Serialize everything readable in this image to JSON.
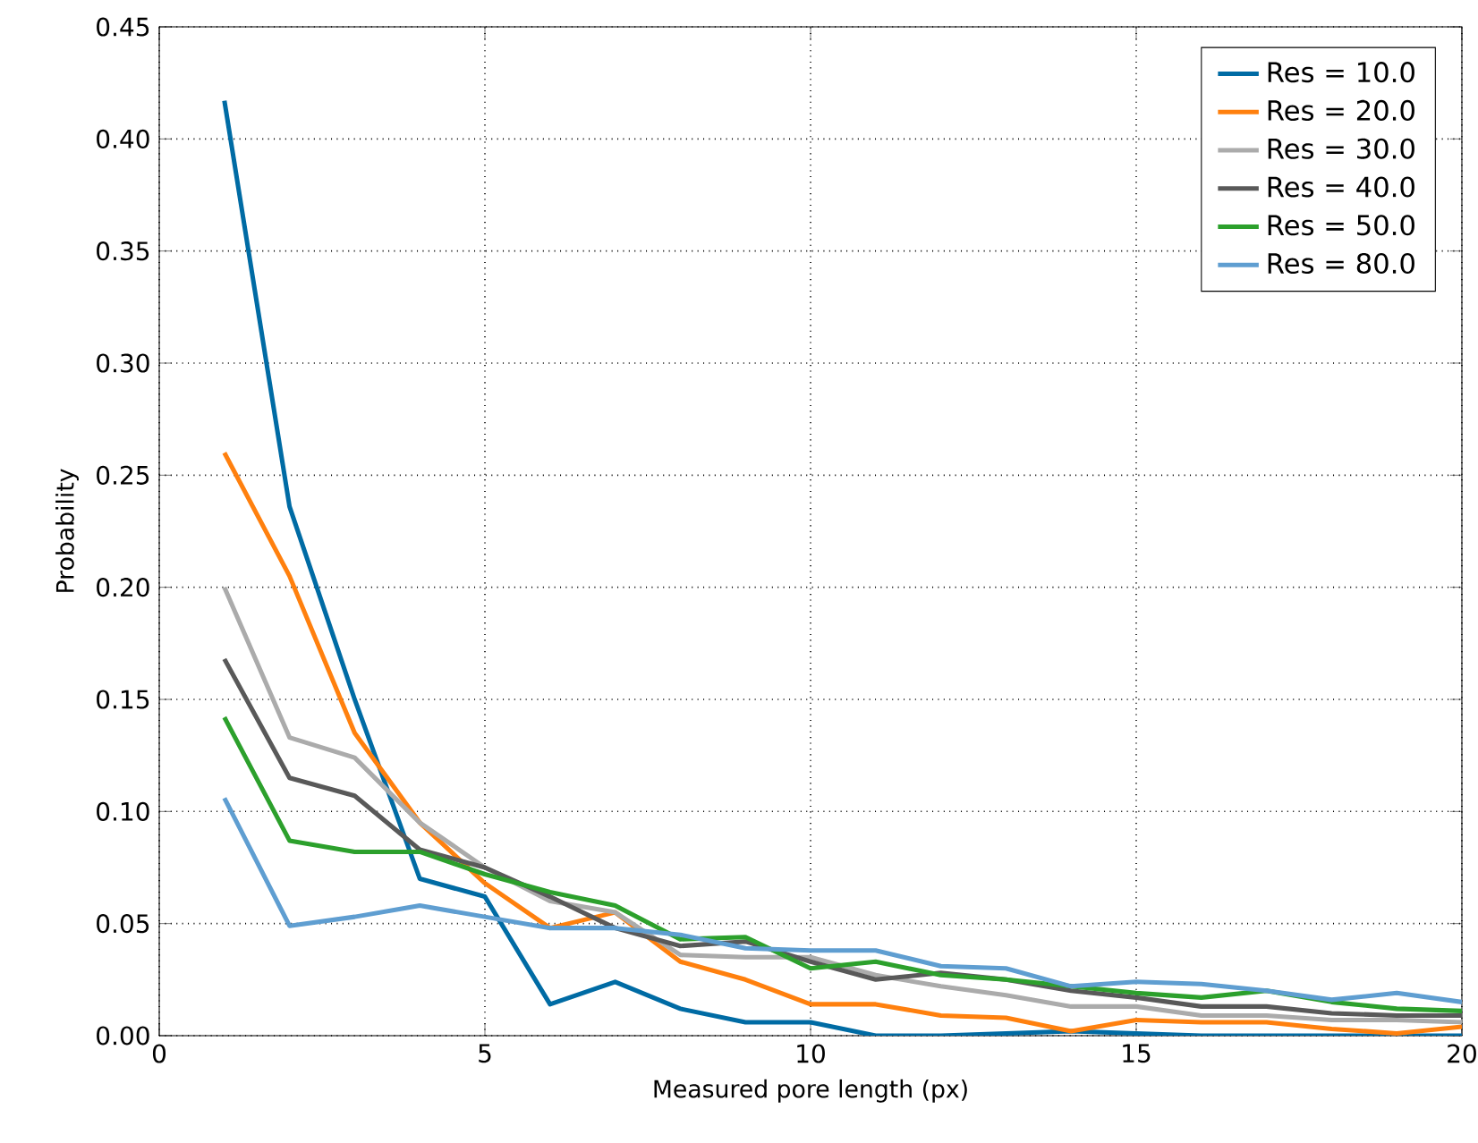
{
  "chart_data": {
    "type": "line",
    "xlabel": "Measured pore length (px)",
    "ylabel": "Probability",
    "x": [
      1,
      2,
      3,
      4,
      5,
      6,
      7,
      8,
      9,
      10,
      11,
      12,
      13,
      14,
      15,
      16,
      17,
      18,
      19,
      20
    ],
    "xlim": [
      0,
      20
    ],
    "ylim": [
      0,
      0.45
    ],
    "xticks": [
      0,
      5,
      10,
      15,
      20
    ],
    "yticks": [
      {
        "value": 0,
        "label": "0.00"
      },
      {
        "value": 0.05,
        "label": "0.05"
      },
      {
        "value": 0.1,
        "label": "0.10"
      },
      {
        "value": 0.15,
        "label": "0.15"
      },
      {
        "value": 0.2,
        "label": "0.20"
      },
      {
        "value": 0.25,
        "label": "0.25"
      },
      {
        "value": 0.3,
        "label": "0.30"
      },
      {
        "value": 0.35,
        "label": "0.35"
      },
      {
        "value": 0.4,
        "label": "0.40"
      },
      {
        "value": 0.45,
        "label": "0.45"
      }
    ],
    "grid": true,
    "legend": "top right",
    "line_style": "solid",
    "marker": "none",
    "series": [
      {
        "name": "Res = 10.0",
        "color": "#006ba4",
        "values": [
          0.417,
          0.236,
          0.15,
          0.07,
          0.062,
          0.014,
          0.024,
          0.012,
          0.006,
          0.006,
          0.0,
          0.0,
          0.001,
          0.002,
          0.001,
          0.0,
          0.0,
          0.0,
          0.0,
          0.0
        ]
      },
      {
        "name": "Res = 20.0",
        "color": "#ff800e",
        "values": [
          0.26,
          0.205,
          0.135,
          0.095,
          0.068,
          0.048,
          0.055,
          0.033,
          0.025,
          0.014,
          0.014,
          0.009,
          0.008,
          0.002,
          0.007,
          0.006,
          0.006,
          0.003,
          0.001,
          0.004
        ]
      },
      {
        "name": "Res = 30.0",
        "color": "#ababab",
        "values": [
          0.2,
          0.133,
          0.124,
          0.095,
          0.075,
          0.06,
          0.055,
          0.036,
          0.035,
          0.035,
          0.027,
          0.022,
          0.018,
          0.013,
          0.013,
          0.009,
          0.009,
          0.007,
          0.007,
          0.006
        ]
      },
      {
        "name": "Res = 40.0",
        "color": "#595959",
        "values": [
          0.168,
          0.115,
          0.107,
          0.083,
          0.075,
          0.062,
          0.048,
          0.04,
          0.042,
          0.033,
          0.025,
          0.028,
          0.025,
          0.02,
          0.017,
          0.013,
          0.013,
          0.01,
          0.009,
          0.009
        ]
      },
      {
        "name": "Res = 50.0",
        "color": "#2ca02c",
        "values": [
          0.142,
          0.087,
          0.082,
          0.082,
          0.072,
          0.064,
          0.058,
          0.043,
          0.044,
          0.03,
          0.033,
          0.027,
          0.025,
          0.022,
          0.019,
          0.017,
          0.02,
          0.015,
          0.012,
          0.011
        ]
      },
      {
        "name": "Res = 80.0",
        "color": "#5f9ed1",
        "values": [
          0.106,
          0.049,
          0.053,
          0.058,
          0.053,
          0.048,
          0.048,
          0.045,
          0.039,
          0.038,
          0.038,
          0.031,
          0.03,
          0.022,
          0.024,
          0.023,
          0.02,
          0.016,
          0.019,
          0.015
        ]
      }
    ]
  }
}
